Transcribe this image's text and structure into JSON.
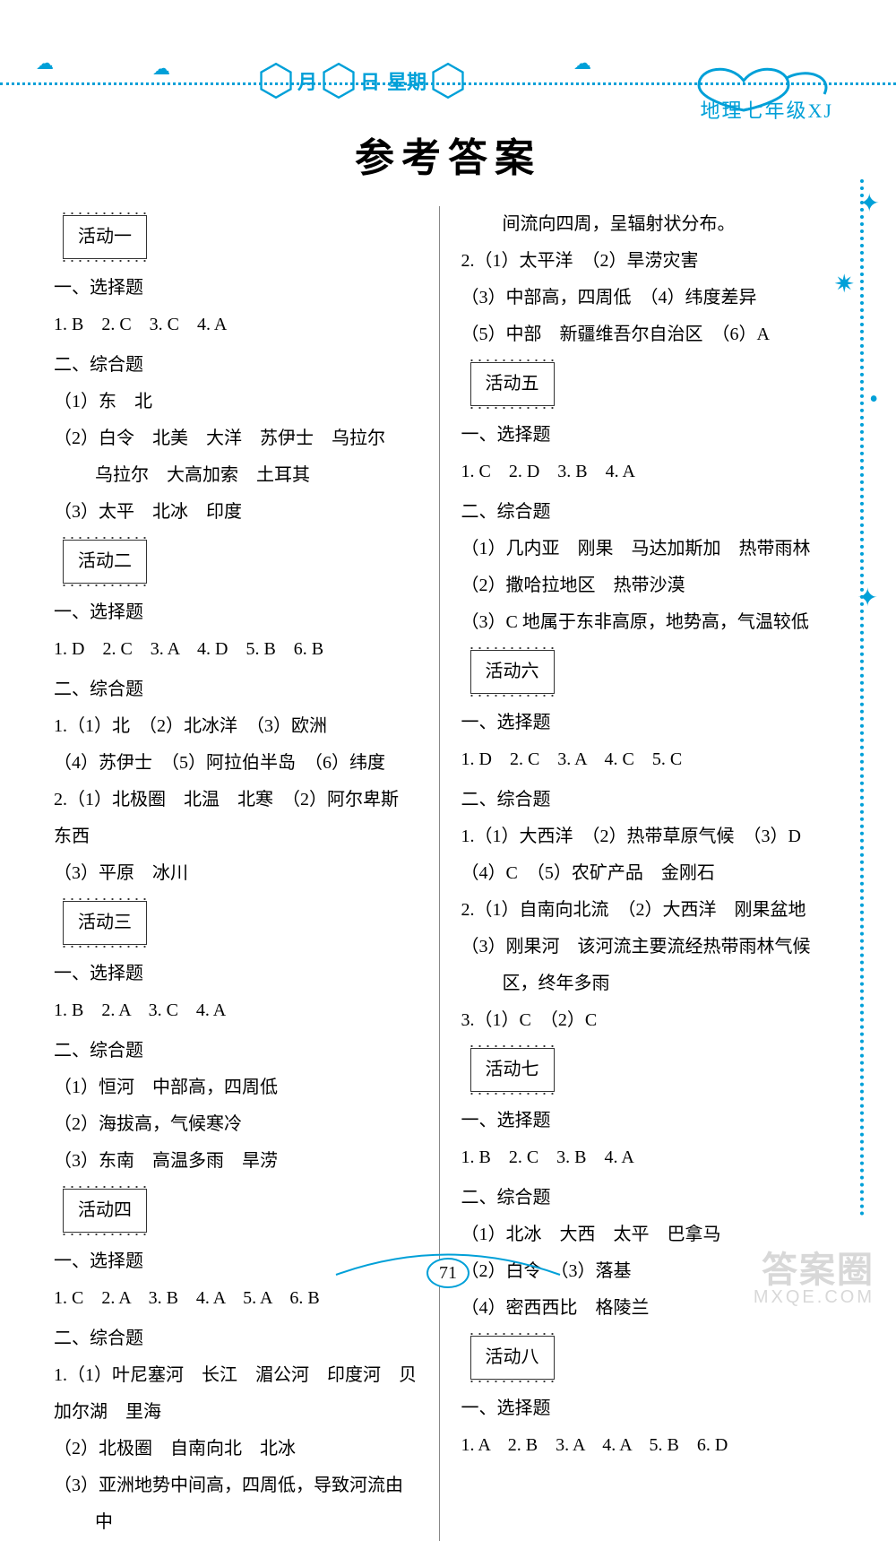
{
  "header": {
    "hex_labels": [
      "月",
      "日",
      "星期"
    ],
    "subject": "地理七年级XJ"
  },
  "title": "参考答案",
  "page_number": "71",
  "watermark": {
    "line1": "答案圈",
    "line2": "MXQE.COM"
  },
  "colors": {
    "accent": "#00a0d8",
    "text": "#222222",
    "watermark": "#d8d8d8"
  },
  "left_column": [
    {
      "type": "badge",
      "text": "活动一"
    },
    {
      "type": "head",
      "text": "一、选择题"
    },
    {
      "type": "flat",
      "text": "1. B　2. C　3. C　4. A"
    },
    {
      "type": "head",
      "text": "二、综合题"
    },
    {
      "type": "sub",
      "text": "（1）东　北"
    },
    {
      "type": "sub",
      "text": "（2）白令　北美　大洋　苏伊士　乌拉尔　乌拉尔　大高加索　土耳其"
    },
    {
      "type": "sub",
      "text": "（3）太平　北冰　印度"
    },
    {
      "type": "badge",
      "text": "活动二"
    },
    {
      "type": "head",
      "text": "一、选择题"
    },
    {
      "type": "flat",
      "text": "1. D　2. C　3. A　4. D　5. B　6. B"
    },
    {
      "type": "head",
      "text": "二、综合题"
    },
    {
      "type": "flat",
      "text": "1.（1）北　（2）北冰洋　（3）欧洲"
    },
    {
      "type": "sub",
      "text": "（4）苏伊士　（5）阿拉伯半岛　（6）纬度"
    },
    {
      "type": "flat",
      "text": "2.（1）北极圈　北温　北寒　（2）阿尔卑斯　东西"
    },
    {
      "type": "sub",
      "text": "（3）平原　冰川"
    },
    {
      "type": "badge",
      "text": "活动三"
    },
    {
      "type": "head",
      "text": "一、选择题"
    },
    {
      "type": "flat",
      "text": "1. B　2. A　3. C　4. A"
    },
    {
      "type": "head",
      "text": "二、综合题"
    },
    {
      "type": "sub",
      "text": "（1）恒河　中部高，四周低"
    },
    {
      "type": "sub",
      "text": "（2）海拔高，气候寒冷"
    },
    {
      "type": "sub",
      "text": "（3）东南　高温多雨　旱涝"
    },
    {
      "type": "badge",
      "text": "活动四"
    },
    {
      "type": "head",
      "text": "一、选择题"
    },
    {
      "type": "flat",
      "text": "1. C　2. A　3. B　4. A　5. A　6. B"
    },
    {
      "type": "head",
      "text": "二、综合题"
    },
    {
      "type": "flat",
      "text": "1.（1）叶尼塞河　长江　湄公河　印度河　贝加尔湖　里海"
    },
    {
      "type": "sub",
      "text": "（2）北极圈　自南向北　北冰"
    },
    {
      "type": "sub",
      "text": "（3）亚洲地势中间高，四周低，导致河流由中"
    }
  ],
  "right_column": [
    {
      "type": "subc",
      "text": "间流向四周，呈辐射状分布。"
    },
    {
      "type": "flat",
      "text": "2.（1）太平洋　（2）旱涝灾害"
    },
    {
      "type": "sub",
      "text": "（3）中部高，四周低　（4）纬度差异"
    },
    {
      "type": "sub",
      "text": "（5）中部　新疆维吾尔自治区　（6）A"
    },
    {
      "type": "badge",
      "text": "活动五"
    },
    {
      "type": "head",
      "text": "一、选择题"
    },
    {
      "type": "flat",
      "text": "1. C　2. D　3. B　4. A"
    },
    {
      "type": "head",
      "text": "二、综合题"
    },
    {
      "type": "sub",
      "text": "（1）几内亚　刚果　马达加斯加　热带雨林"
    },
    {
      "type": "sub",
      "text": "（2）撒哈拉地区　热带沙漠"
    },
    {
      "type": "sub",
      "text": "（3）C 地属于东非高原，地势高，气温较低"
    },
    {
      "type": "badge",
      "text": "活动六"
    },
    {
      "type": "head",
      "text": "一、选择题"
    },
    {
      "type": "flat",
      "text": "1. D　2. C　3. A　4. C　5. C"
    },
    {
      "type": "head",
      "text": "二、综合题"
    },
    {
      "type": "flat",
      "text": "1.（1）大西洋　（2）热带草原气候　（3）D"
    },
    {
      "type": "sub",
      "text": "（4）C　（5）农矿产品　金刚石"
    },
    {
      "type": "flat",
      "text": "2.（1）自南向北流　（2）大西洋　刚果盆地"
    },
    {
      "type": "sub",
      "text": "（3）刚果河　该河流主要流经热带雨林气候区，终年多雨"
    },
    {
      "type": "flat",
      "text": "3.（1）C　（2）C"
    },
    {
      "type": "badge",
      "text": "活动七"
    },
    {
      "type": "head",
      "text": "一、选择题"
    },
    {
      "type": "flat",
      "text": "1. B　2. C　3. B　4. A"
    },
    {
      "type": "head",
      "text": "二、综合题"
    },
    {
      "type": "sub",
      "text": "（1）北冰　大西　太平　巴拿马"
    },
    {
      "type": "sub",
      "text": "（2）白令　（3）落基"
    },
    {
      "type": "sub",
      "text": "（4）密西西比　格陵兰"
    },
    {
      "type": "badge",
      "text": "活动八"
    },
    {
      "type": "head",
      "text": "一、选择题"
    },
    {
      "type": "flat",
      "text": "1. A　2. B　3. A　4. A　5. B　6. D"
    }
  ]
}
